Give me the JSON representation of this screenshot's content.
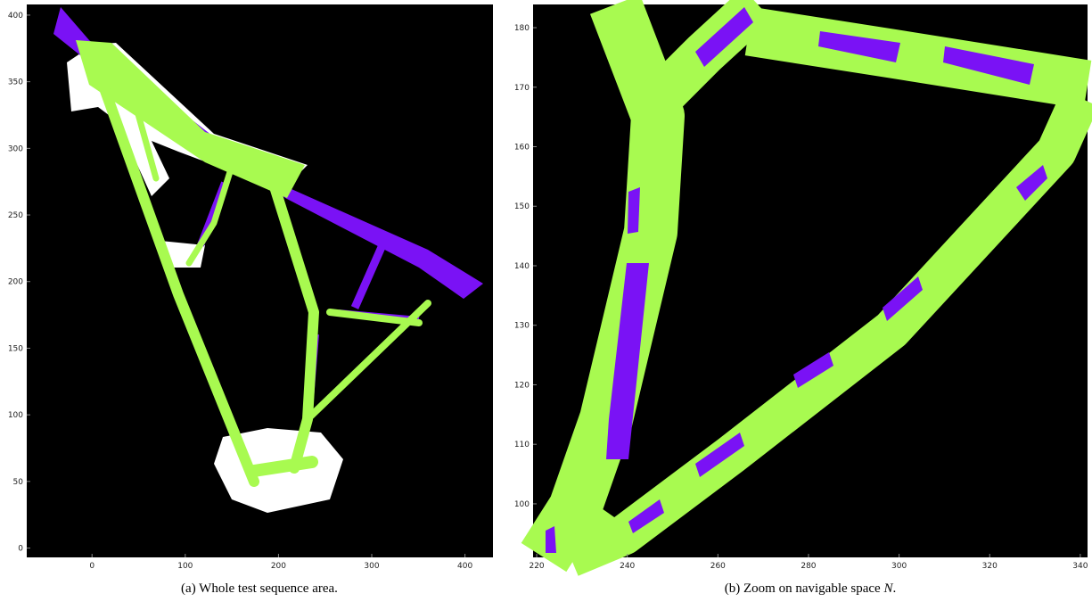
{
  "figure": {
    "panels": [
      {
        "xlim": [
          -70,
          430
        ],
        "ylim": [
          -7,
          408
        ],
        "xticks": [
          0,
          100,
          200,
          300,
          400
        ],
        "yticks": [
          0,
          50,
          100,
          150,
          200,
          250,
          300,
          350,
          400
        ],
        "caption": "(a) Whole test sequence area."
      },
      {
        "xlim": [
          219.2,
          341.6
        ],
        "ylim": [
          91,
          183.9
        ],
        "xticks": [
          220,
          240,
          260,
          280,
          300,
          320,
          340
        ],
        "yticks": [
          100,
          110,
          120,
          130,
          140,
          150,
          160,
          170,
          180
        ],
        "caption_parts": [
          "(b) Zoom on navigable space ",
          "N",
          "."
        ]
      }
    ]
  }
}
